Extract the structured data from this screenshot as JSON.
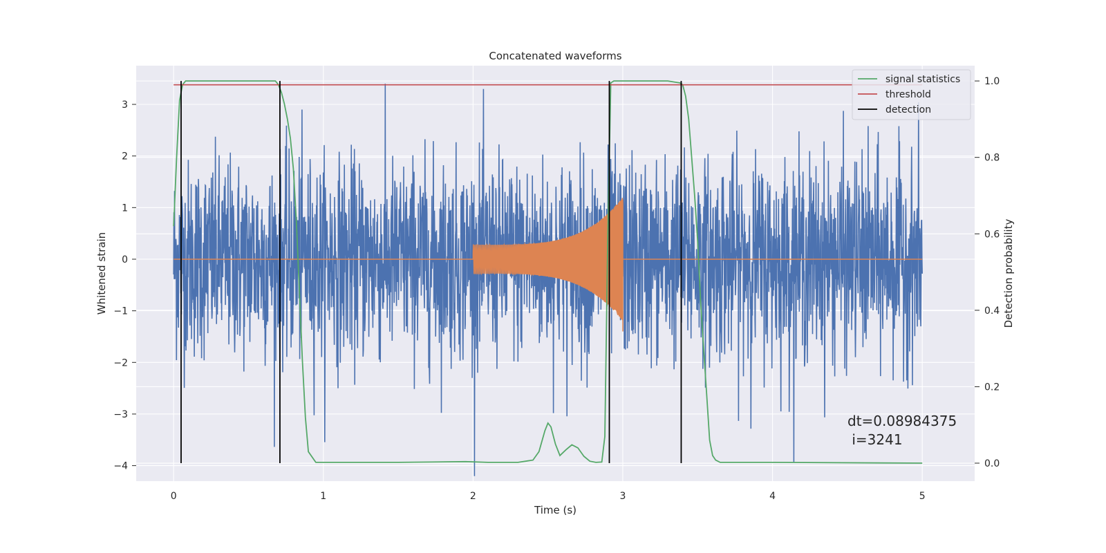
{
  "chart_data": {
    "type": "line",
    "title": "Concatenated waveforms",
    "xlabel": "Time (s)",
    "ylabel_left": "Whitened strain",
    "ylabel_right": "Detection probability",
    "xlim": [
      -0.25,
      5.35
    ],
    "ylim_left": [
      -4.3,
      3.75
    ],
    "ylim_right": [
      -0.047,
      1.04
    ],
    "x_ticks": [
      0,
      1,
      2,
      3,
      4,
      5
    ],
    "y_left_ticks": [
      -4,
      -3,
      -2,
      -1,
      0,
      1,
      2,
      3
    ],
    "y_right_ticks": [
      0.0,
      0.2,
      0.4,
      0.6,
      0.8,
      1.0
    ],
    "grid": true,
    "legend_position": "top-right",
    "series": [
      {
        "name": "",
        "axis": "left",
        "color": "#4c72b0",
        "description": "whitened noise strain",
        "x_range": [
          0,
          5
        ],
        "typical_envelope": [
          -2.0,
          2.2
        ],
        "extremes": [
          -4.3,
          3.4
        ]
      },
      {
        "name": "",
        "axis": "left",
        "color": "#dd8452",
        "description": "injected chirp template",
        "chirp": {
          "start": 2.0,
          "end": 3.0,
          "amp_start": 0.28,
          "amp_end": 1.2
        }
      },
      {
        "name": "signal statistics",
        "axis": "right",
        "color": "#55a868",
        "x": [
          0,
          0.02,
          0.04,
          0.06,
          0.08,
          0.1,
          0.2,
          0.5,
          0.68,
          0.7,
          0.72,
          0.74,
          0.76,
          0.78,
          0.8,
          0.82,
          0.84,
          0.86,
          0.88,
          0.9,
          0.95,
          1.5,
          1.95,
          2.1,
          2.3,
          2.4,
          2.44,
          2.48,
          2.5,
          2.52,
          2.55,
          2.58,
          2.62,
          2.66,
          2.7,
          2.74,
          2.78,
          2.82,
          2.86,
          2.88,
          2.9,
          2.92,
          2.94,
          2.96,
          3.0,
          3.3,
          3.38,
          3.4,
          3.42,
          3.44,
          3.46,
          3.48,
          3.5,
          3.52,
          3.54,
          3.56,
          3.58,
          3.6,
          3.62,
          3.65,
          4.0,
          5.0
        ],
        "y": [
          0.62,
          0.8,
          0.95,
          0.99,
          1.0,
          1.0,
          1.0,
          1.0,
          1.0,
          0.99,
          0.97,
          0.94,
          0.9,
          0.85,
          0.77,
          0.63,
          0.45,
          0.27,
          0.12,
          0.03,
          0.002,
          0.002,
          0.004,
          0.002,
          0.002,
          0.008,
          0.03,
          0.085,
          0.105,
          0.095,
          0.05,
          0.02,
          0.035,
          0.048,
          0.04,
          0.018,
          0.005,
          0.002,
          0.003,
          0.07,
          0.6,
          0.995,
          1.0,
          1.0,
          1.0,
          1.0,
          0.995,
          0.99,
          0.96,
          0.9,
          0.8,
          0.7,
          0.58,
          0.42,
          0.3,
          0.18,
          0.06,
          0.02,
          0.008,
          0.002,
          0.002,
          0.0
        ]
      },
      {
        "name": "threshold",
        "axis": "right",
        "color": "#c44e52",
        "x": [
          0,
          5
        ],
        "y": [
          0.99,
          0.99
        ]
      },
      {
        "name": "detection",
        "axis": "right",
        "color": "#000000",
        "vlines": [
          0.05,
          0.71,
          2.91,
          3.39
        ],
        "y_range": [
          0.0,
          1.0
        ]
      }
    ],
    "annotation": [
      "dt=0.08984375",
      " i=3241"
    ]
  }
}
